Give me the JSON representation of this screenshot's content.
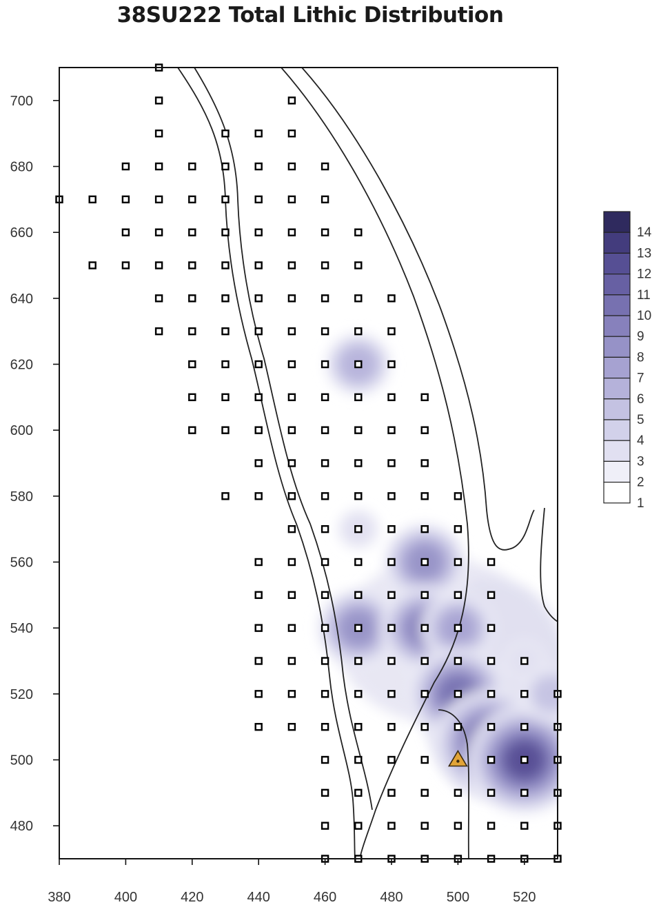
{
  "chart_data": {
    "type": "heatmap",
    "title": "38SU222 Total Lithic Distribution",
    "xlim": [
      380,
      530
    ],
    "ylim": [
      470,
      710
    ],
    "x_ticks": [
      380,
      400,
      420,
      440,
      460,
      480,
      500,
      520
    ],
    "y_ticks": [
      480,
      500,
      520,
      540,
      560,
      580,
      600,
      620,
      640,
      660,
      680,
      700
    ],
    "legend": {
      "placement": "right",
      "levels": [
        "1",
        "2",
        "3",
        "4",
        "5",
        "6",
        "7",
        "8",
        "9",
        "10",
        "11",
        "12",
        "13",
        "14"
      ],
      "colors": [
        "#ffffff",
        "#efeff8",
        "#e1e0f1",
        "#d2d1ea",
        "#c4c2e2",
        "#b5b2da",
        "#a6a2d1",
        "#9692c7",
        "#8781bc",
        "#7771b0",
        "#6760a3",
        "#564f94",
        "#433c7d",
        "#2f2a5e"
      ]
    },
    "accent_colors": {
      "marker": "#e2a437",
      "grid_point": "#000000"
    },
    "shovel_tests": [
      [
        410,
        710
      ],
      [
        410,
        700
      ],
      [
        450,
        700
      ],
      [
        410,
        690
      ],
      [
        430,
        690
      ],
      [
        440,
        690
      ],
      [
        450,
        690
      ],
      [
        400,
        680
      ],
      [
        410,
        680
      ],
      [
        420,
        680
      ],
      [
        430,
        680
      ],
      [
        440,
        680
      ],
      [
        450,
        680
      ],
      [
        460,
        680
      ],
      [
        380,
        670
      ],
      [
        390,
        670
      ],
      [
        400,
        670
      ],
      [
        410,
        670
      ],
      [
        420,
        670
      ],
      [
        430,
        670
      ],
      [
        440,
        670
      ],
      [
        450,
        670
      ],
      [
        460,
        670
      ],
      [
        400,
        660
      ],
      [
        410,
        660
      ],
      [
        420,
        660
      ],
      [
        430,
        660
      ],
      [
        440,
        660
      ],
      [
        450,
        660
      ],
      [
        460,
        660
      ],
      [
        470,
        660
      ],
      [
        390,
        650
      ],
      [
        400,
        650
      ],
      [
        410,
        650
      ],
      [
        420,
        650
      ],
      [
        430,
        650
      ],
      [
        440,
        650
      ],
      [
        450,
        650
      ],
      [
        460,
        650
      ],
      [
        470,
        650
      ],
      [
        410,
        640
      ],
      [
        420,
        640
      ],
      [
        430,
        640
      ],
      [
        440,
        640
      ],
      [
        450,
        640
      ],
      [
        460,
        640
      ],
      [
        470,
        640
      ],
      [
        480,
        640
      ],
      [
        410,
        630
      ],
      [
        420,
        630
      ],
      [
        430,
        630
      ],
      [
        440,
        630
      ],
      [
        450,
        630
      ],
      [
        460,
        630
      ],
      [
        470,
        630
      ],
      [
        480,
        630
      ],
      [
        420,
        620
      ],
      [
        430,
        620
      ],
      [
        440,
        620
      ],
      [
        450,
        620
      ],
      [
        460,
        620
      ],
      [
        470,
        620
      ],
      [
        480,
        620
      ],
      [
        420,
        610
      ],
      [
        430,
        610
      ],
      [
        440,
        610
      ],
      [
        450,
        610
      ],
      [
        460,
        610
      ],
      [
        470,
        610
      ],
      [
        480,
        610
      ],
      [
        490,
        610
      ],
      [
        420,
        600
      ],
      [
        430,
        600
      ],
      [
        440,
        600
      ],
      [
        450,
        600
      ],
      [
        460,
        600
      ],
      [
        470,
        600
      ],
      [
        480,
        600
      ],
      [
        490,
        600
      ],
      [
        440,
        590
      ],
      [
        450,
        590
      ],
      [
        460,
        590
      ],
      [
        470,
        590
      ],
      [
        480,
        590
      ],
      [
        490,
        590
      ],
      [
        430,
        580
      ],
      [
        440,
        580
      ],
      [
        450,
        580
      ],
      [
        460,
        580
      ],
      [
        470,
        580
      ],
      [
        480,
        580
      ],
      [
        490,
        580
      ],
      [
        500,
        580
      ],
      [
        450,
        570
      ],
      [
        460,
        570
      ],
      [
        470,
        570
      ],
      [
        480,
        570
      ],
      [
        490,
        570
      ],
      [
        500,
        570
      ],
      [
        440,
        560
      ],
      [
        450,
        560
      ],
      [
        460,
        560
      ],
      [
        470,
        560
      ],
      [
        480,
        560
      ],
      [
        490,
        560
      ],
      [
        500,
        560
      ],
      [
        510,
        560
      ],
      [
        440,
        550
      ],
      [
        450,
        550
      ],
      [
        460,
        550
      ],
      [
        470,
        550
      ],
      [
        480,
        550
      ],
      [
        490,
        550
      ],
      [
        500,
        550
      ],
      [
        510,
        550
      ],
      [
        440,
        540
      ],
      [
        450,
        540
      ],
      [
        460,
        540
      ],
      [
        470,
        540
      ],
      [
        480,
        540
      ],
      [
        490,
        540
      ],
      [
        500,
        540
      ],
      [
        510,
        540
      ],
      [
        440,
        530
      ],
      [
        450,
        530
      ],
      [
        460,
        530
      ],
      [
        470,
        530
      ],
      [
        480,
        530
      ],
      [
        490,
        530
      ],
      [
        500,
        530
      ],
      [
        510,
        530
      ],
      [
        520,
        530
      ],
      [
        440,
        520
      ],
      [
        450,
        520
      ],
      [
        460,
        520
      ],
      [
        470,
        520
      ],
      [
        480,
        520
      ],
      [
        490,
        520
      ],
      [
        500,
        520
      ],
      [
        510,
        520
      ],
      [
        520,
        520
      ],
      [
        530,
        520
      ],
      [
        440,
        510
      ],
      [
        450,
        510
      ],
      [
        460,
        510
      ],
      [
        470,
        510
      ],
      [
        480,
        510
      ],
      [
        490,
        510
      ],
      [
        500,
        510
      ],
      [
        510,
        510
      ],
      [
        520,
        510
      ],
      [
        530,
        510
      ],
      [
        460,
        500
      ],
      [
        470,
        500
      ],
      [
        480,
        500
      ],
      [
        490,
        500
      ],
      [
        510,
        500
      ],
      [
        520,
        500
      ],
      [
        530,
        500
      ],
      [
        460,
        490
      ],
      [
        470,
        490
      ],
      [
        480,
        490
      ],
      [
        490,
        490
      ],
      [
        500,
        490
      ],
      [
        510,
        490
      ],
      [
        520,
        490
      ],
      [
        530,
        490
      ],
      [
        460,
        480
      ],
      [
        470,
        480
      ],
      [
        480,
        480
      ],
      [
        490,
        480
      ],
      [
        500,
        480
      ],
      [
        510,
        480
      ],
      [
        520,
        480
      ],
      [
        530,
        480
      ],
      [
        460,
        470
      ],
      [
        470,
        470
      ],
      [
        480,
        470
      ],
      [
        490,
        470
      ],
      [
        500,
        470
      ],
      [
        510,
        470
      ],
      [
        520,
        470
      ],
      [
        530,
        470
      ]
    ],
    "lithic_peaks": [
      {
        "x": 470,
        "y": 620,
        "value": 6
      },
      {
        "x": 470,
        "y": 570,
        "value": 3
      },
      {
        "x": 490,
        "y": 560,
        "value": 8
      },
      {
        "x": 470,
        "y": 540,
        "value": 8
      },
      {
        "x": 490,
        "y": 540,
        "value": 9
      },
      {
        "x": 500,
        "y": 540,
        "value": 7
      },
      {
        "x": 500,
        "y": 520,
        "value": 10
      },
      {
        "x": 510,
        "y": 505,
        "value": 12
      },
      {
        "x": 520,
        "y": 500,
        "value": 12
      },
      {
        "x": 520,
        "y": 530,
        "value": 3
      },
      {
        "x": 528,
        "y": 520,
        "value": 5
      }
    ],
    "datum_marker": {
      "x": 500,
      "y": 500,
      "shape": "triangle"
    }
  }
}
